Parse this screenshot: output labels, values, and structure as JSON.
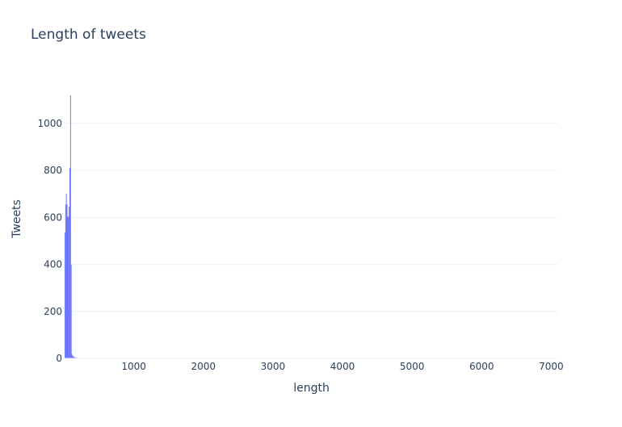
{
  "chart_data": {
    "type": "bar",
    "title": "Length of tweets",
    "xlabel": "length",
    "ylabel": "Tweets",
    "xlim": [
      5,
      7100
    ],
    "ylim": [
      0,
      1120
    ],
    "x_ticks": [
      1000,
      2000,
      3000,
      4000,
      5000,
      6000,
      7000
    ],
    "y_ticks": [
      0,
      200,
      400,
      600,
      800,
      1000
    ],
    "grid": true,
    "bar_color": "#636efa",
    "bin_width": 10,
    "series": [
      {
        "bins": [
          {
            "x": 10,
            "y": 535
          },
          {
            "x": 20,
            "y": 655
          },
          {
            "x": 30,
            "y": 700
          },
          {
            "x": 40,
            "y": 655
          },
          {
            "x": 50,
            "y": 600
          },
          {
            "x": 60,
            "y": 605
          },
          {
            "x": 70,
            "y": 645
          },
          {
            "x": 80,
            "y": 810
          },
          {
            "x": 90,
            "y": 1120
          },
          {
            "x": 100,
            "y": 400
          },
          {
            "x": 110,
            "y": 18
          },
          {
            "x": 120,
            "y": 12
          },
          {
            "x": 130,
            "y": 8
          },
          {
            "x": 140,
            "y": 6
          },
          {
            "x": 150,
            "y": 5
          },
          {
            "x": 160,
            "y": 4
          },
          {
            "x": 170,
            "y": 3
          },
          {
            "x": 190,
            "y": 2
          },
          {
            "x": 220,
            "y": 2
          },
          {
            "x": 260,
            "y": 1
          },
          {
            "x": 320,
            "y": 2
          },
          {
            "x": 380,
            "y": 1
          },
          {
            "x": 500,
            "y": 1
          },
          {
            "x": 1200,
            "y": 1
          },
          {
            "x": 1320,
            "y": 1
          },
          {
            "x": 2050,
            "y": 1
          },
          {
            "x": 2100,
            "y": 1
          },
          {
            "x": 3550,
            "y": 1
          },
          {
            "x": 6500,
            "y": 1
          }
        ]
      }
    ]
  }
}
